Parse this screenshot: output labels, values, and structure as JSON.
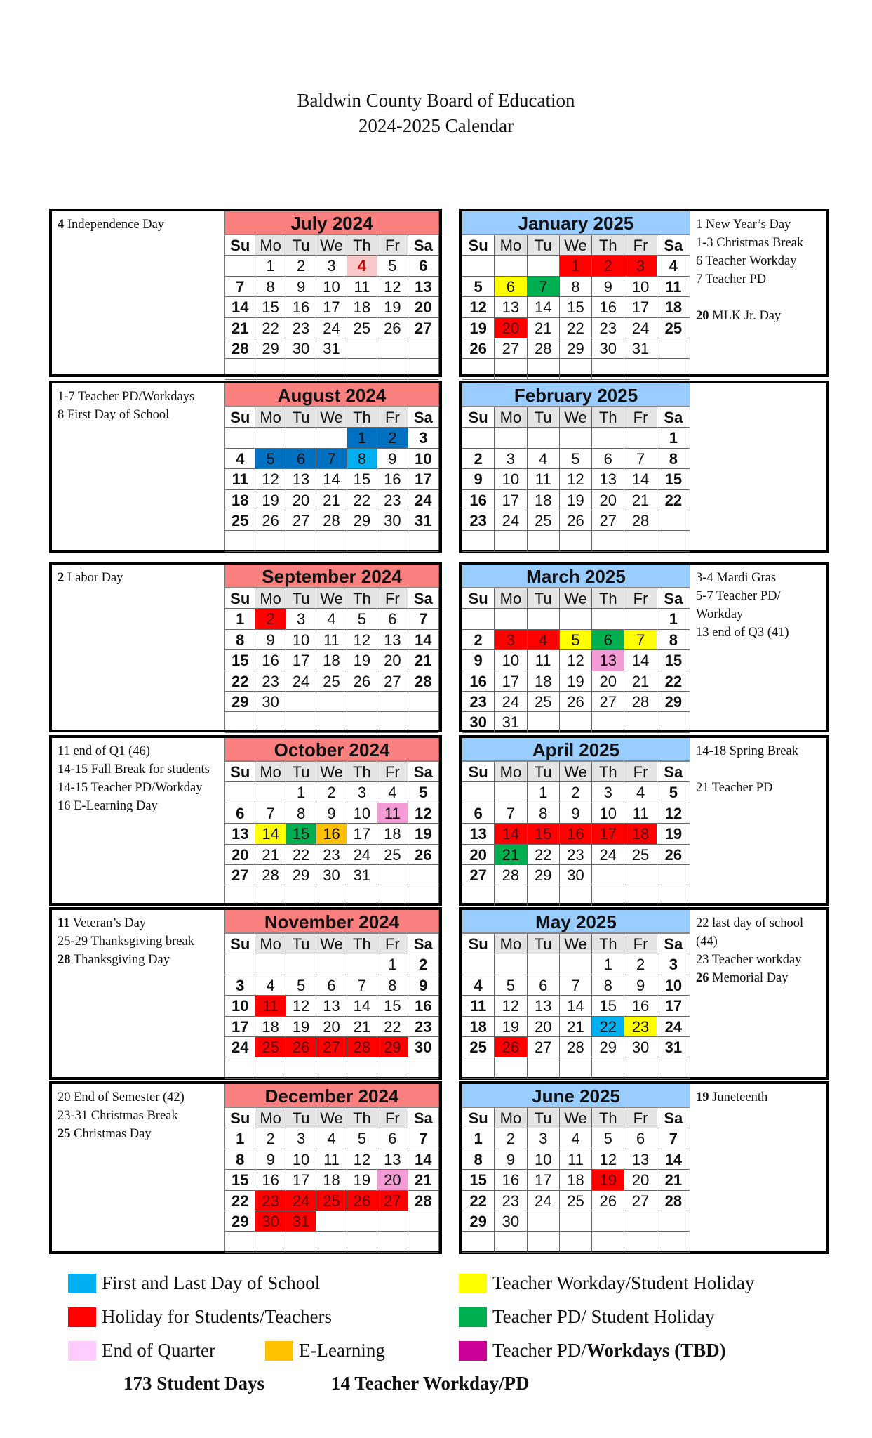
{
  "title": {
    "line1": "Baldwin County Board of Education",
    "line2": "2024-2025 Calendar"
  },
  "weekdays": [
    "Su",
    "Mo",
    "Tu",
    "We",
    "Th",
    "Fr",
    "Sa"
  ],
  "colors": {
    "header_fall": "#fa8080",
    "header_spring": "#99ccff",
    "first_last": "#00b0f0",
    "holiday": "#ff0000",
    "holiday_light": "#f9c9c9",
    "workday": "#ffff00",
    "pd": "#00b050",
    "eoq": "#f29bd5",
    "eoq_legend": "#ffccff",
    "elearning": "#ffc000",
    "pd_tbd": "#0070c0",
    "pd_tbd_legend": "#cc0099"
  },
  "months": [
    {
      "name": "July 2024",
      "season": "fall",
      "start": 1,
      "days": 31,
      "marks": {
        "4": "holiday_light"
      },
      "notes": [
        {
          "b": "4",
          "t": " Independence Day"
        }
      ]
    },
    {
      "name": "August 2024",
      "season": "fall",
      "start": 4,
      "days": 31,
      "marks": {
        "1": "pd_tbd",
        "2": "pd_tbd",
        "5": "pd_tbd",
        "6": "pd_tbd",
        "7": "pd_tbd",
        "8": "first_last"
      },
      "notes": [
        {
          "b": "",
          "t": "1-7 Teacher PD/Workdays"
        },
        {
          "b": "",
          "t": "8 First Day of School"
        }
      ]
    },
    {
      "name": "September 2024",
      "season": "fall",
      "start": 0,
      "days": 30,
      "marks": {
        "2": "holiday"
      },
      "notes": [
        {
          "b": "2",
          "t": " Labor Day"
        }
      ]
    },
    {
      "name": "October 2024",
      "season": "fall",
      "start": 2,
      "days": 31,
      "marks": {
        "11": "eoq",
        "14": "workday",
        "15": "pd",
        "16": "elearning"
      },
      "notes": [
        {
          "b": "",
          "t": "11 end of Q1 (46)"
        },
        {
          "b": "",
          "t": "14-15 Fall Break for students"
        },
        {
          "b": "",
          "t": "14-15 Teacher PD/Workday"
        },
        {
          "b": "",
          "t": "16 E-Learning Day"
        }
      ]
    },
    {
      "name": "November 2024",
      "season": "fall",
      "start": 5,
      "days": 30,
      "marks": {
        "11": "holiday",
        "25": "holiday",
        "26": "holiday",
        "27": "holiday",
        "28": "holiday",
        "29": "holiday"
      },
      "notes": [
        {
          "b": "11",
          "t": " Veteran’s Day"
        },
        {
          "b": "",
          "t": "25-29 Thanksgiving break"
        },
        {
          "b": "28",
          "t": " Thanksgiving Day"
        }
      ]
    },
    {
      "name": "December 2024",
      "season": "fall",
      "start": 0,
      "days": 31,
      "marks": {
        "20": "eoq",
        "23": "holiday",
        "24": "holiday",
        "25": "holiday",
        "26": "holiday",
        "27": "holiday",
        "30": "holiday",
        "31": "holiday"
      },
      "notes": [
        {
          "b": "",
          "t": "20 End of Semester (42)"
        },
        {
          "b": "",
          "t": "23-31 Christmas Break"
        },
        {
          "b": "25",
          "t": " Christmas Day"
        }
      ]
    },
    {
      "name": "January 2025",
      "season": "spring",
      "start": 3,
      "days": 31,
      "marks": {
        "1": "holiday",
        "2": "holiday",
        "3": "holiday",
        "6": "workday",
        "7": "pd",
        "20": "holiday"
      },
      "notes": [
        {
          "b": "",
          "t": "1 New Year’s Day"
        },
        {
          "b": "",
          "t": "1-3 Christmas Break"
        },
        {
          "b": "",
          "t": "6 Teacher Workday"
        },
        {
          "b": "",
          "t": "7 Teacher PD"
        },
        {
          "b": "",
          "t": ""
        },
        {
          "b": "20",
          "t": " MLK Jr. Day"
        }
      ]
    },
    {
      "name": "February 2025",
      "season": "spring",
      "start": 6,
      "days": 28,
      "marks": {},
      "notes": []
    },
    {
      "name": "March 2025",
      "season": "spring",
      "start": 6,
      "days": 31,
      "marks": {
        "3": "holiday",
        "4": "holiday",
        "5": "workday",
        "6": "pd",
        "7": "workday",
        "13": "eoq"
      },
      "notes": [
        {
          "b": "",
          "t": "3-4 Mardi Gras"
        },
        {
          "b": "",
          "t": "5-7 Teacher PD/"
        },
        {
          "b": "",
          "t": "Workday"
        },
        {
          "b": "",
          "t": "13 end of Q3 (41)"
        }
      ]
    },
    {
      "name": "April 2025",
      "season": "spring",
      "start": 2,
      "days": 30,
      "marks": {
        "14": "holiday",
        "15": "holiday",
        "16": "holiday",
        "17": "holiday",
        "18": "holiday",
        "21": "pd"
      },
      "notes": [
        {
          "b": "",
          "t": "14-18 Spring Break"
        },
        {
          "b": "",
          "t": ""
        },
        {
          "b": "",
          "t": "21 Teacher PD"
        }
      ]
    },
    {
      "name": "May 2025",
      "season": "spring",
      "start": 4,
      "days": 31,
      "marks": {
        "22": "first_last",
        "23": "workday",
        "26": "holiday"
      },
      "notes": [
        {
          "b": "",
          "t": "22 last day of school"
        },
        {
          "b": "",
          "t": "(44)"
        },
        {
          "b": "",
          "t": "23 Teacher workday"
        },
        {
          "b": "26",
          "t": " Memorial Day"
        }
      ]
    },
    {
      "name": "June 2025",
      "season": "spring",
      "start": 0,
      "days": 30,
      "marks": {
        "19": "holiday"
      },
      "notes": [
        {
          "b": "19",
          "t": " Juneteenth"
        }
      ]
    }
  ],
  "legend": [
    {
      "key": "first_last",
      "label": "First and Last Day of School"
    },
    {
      "key": "holiday",
      "label": "Holiday for Students/Teachers"
    },
    {
      "key": "eoq_legend",
      "label": "End of Quarter"
    },
    {
      "key": "elearning",
      "label": "E-Learning"
    },
    {
      "key": "workday",
      "label": "Teacher Workday/Student Holiday"
    },
    {
      "key": "pd",
      "label": "Teacher PD/ Student Holiday"
    },
    {
      "key": "pd_tbd_legend",
      "label": "Teacher PD/",
      "bold": "Workdays (TBD)"
    }
  ],
  "totals": {
    "student_days": "173 Student Days",
    "teacher_days": "14 Teacher Workday/PD"
  }
}
